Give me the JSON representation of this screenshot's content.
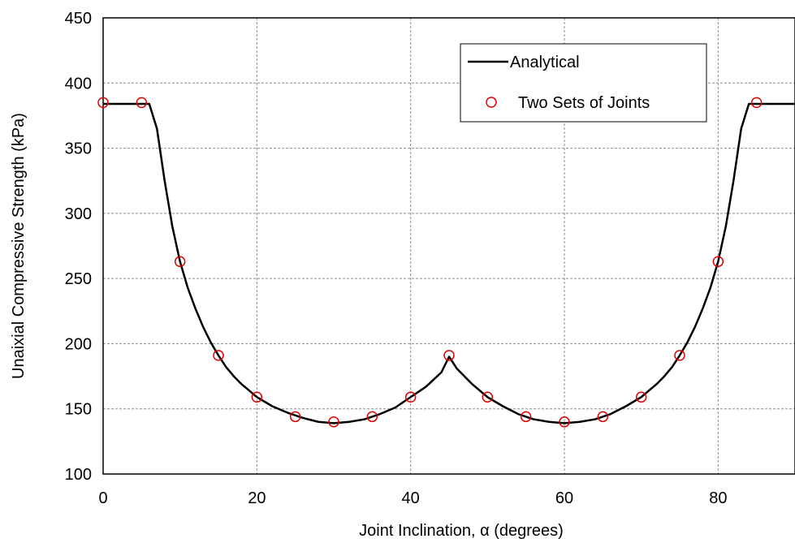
{
  "chart_data": {
    "type": "line",
    "title": "",
    "xlabel": "Joint Inclination, α (degrees)",
    "ylabel": "Unaixial Compressive Strength (kPa)",
    "xlim": [
      0,
      90
    ],
    "ylim": [
      100,
      450
    ],
    "x_ticks": [
      0,
      20,
      40,
      60,
      80
    ],
    "y_ticks": [
      100,
      150,
      200,
      250,
      300,
      350,
      400,
      450
    ],
    "grid": true,
    "legend_position": "top-right",
    "series": [
      {
        "name": "Analytical",
        "kind": "line",
        "color": "#000000",
        "x": [
          0,
          5,
          6,
          7,
          8,
          9,
          10,
          11,
          12,
          13,
          14,
          15,
          16,
          17,
          18,
          19,
          20,
          22,
          24,
          26,
          28,
          30,
          32,
          34,
          36,
          38,
          40,
          42,
          44,
          45,
          46,
          48,
          50,
          52,
          54,
          56,
          58,
          60,
          62,
          64,
          66,
          68,
          70,
          71,
          72,
          73,
          74,
          75,
          76,
          77,
          78,
          79,
          80,
          81,
          82,
          83,
          84,
          85,
          90
        ],
        "y": [
          384,
          384,
          384,
          365,
          325,
          290,
          263,
          243,
          227,
          213,
          201,
          191,
          182,
          175,
          169,
          164,
          159,
          152,
          147,
          143,
          140,
          139,
          140,
          142,
          146,
          151,
          159,
          167,
          178,
          190,
          181,
          169,
          159,
          152,
          146,
          142,
          140,
          139,
          140,
          142,
          146,
          152,
          159,
          164,
          169,
          175,
          182,
          191,
          201,
          213,
          227,
          243,
          263,
          290,
          325,
          365,
          384,
          384,
          384
        ]
      },
      {
        "name": "Two Sets of Joints",
        "kind": "scatter",
        "color": "#e00000",
        "x": [
          0,
          5,
          10,
          15,
          20,
          25,
          30,
          35,
          40,
          45,
          50,
          55,
          60,
          65,
          70,
          75,
          80,
          85
        ],
        "y": [
          385,
          385,
          263,
          191,
          159,
          144,
          140,
          144,
          159,
          191,
          159,
          144,
          140,
          144,
          159,
          191,
          263,
          385
        ]
      }
    ]
  }
}
